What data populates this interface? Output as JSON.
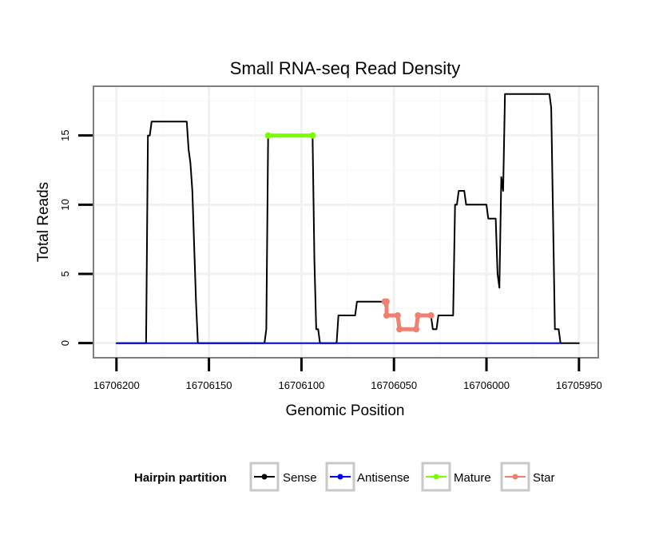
{
  "chart_data": {
    "type": "line",
    "title": "Small RNA-seq Read Density",
    "xlabel": "Genomic Position",
    "ylabel": "Total Reads",
    "x_reversed": true,
    "xlim": [
      16706212,
      16705940
    ],
    "ylim": [
      -1,
      18.5
    ],
    "x_ticks": [
      16706200,
      16706150,
      16706100,
      16706050,
      16706000,
      16705950
    ],
    "x_tick_labels": [
      "16706200",
      "16706150",
      "16706100",
      "16706050",
      "16706000",
      "16705950"
    ],
    "y_ticks": [
      0,
      5,
      10,
      15
    ],
    "y_tick_labels": [
      "0",
      "5",
      "10",
      "15"
    ],
    "grid": true,
    "legend": {
      "title": "Hairpin partition",
      "position": "bottom",
      "entries": [
        {
          "label": "Sense",
          "color": "#000000"
        },
        {
          "label": "Antisense",
          "color": "#0000ff"
        },
        {
          "label": "Mature",
          "color": "#7cfc00"
        },
        {
          "label": "Star",
          "color": "#f08070"
        }
      ]
    },
    "series": [
      {
        "name": "Sense",
        "color": "#000000",
        "points": [
          [
            16706200,
            0
          ],
          [
            16706184,
            0
          ],
          [
            16706183,
            15
          ],
          [
            16706182,
            15
          ],
          [
            16706181,
            16
          ],
          [
            16706162,
            16
          ],
          [
            16706161,
            14
          ],
          [
            16706160,
            13
          ],
          [
            16706159,
            11
          ],
          [
            16706157,
            3
          ],
          [
            16706156,
            0
          ],
          [
            16706120,
            0
          ],
          [
            16706119,
            1
          ],
          [
            16706118,
            15
          ],
          [
            16706094,
            15
          ],
          [
            16706093,
            6
          ],
          [
            16706092,
            1
          ],
          [
            16706091,
            1
          ],
          [
            16706090,
            0
          ],
          [
            16706081,
            0
          ],
          [
            16706080,
            2
          ],
          [
            16706071,
            2
          ],
          [
            16706070,
            3
          ],
          [
            16706055,
            3
          ],
          [
            16706054,
            2
          ],
          [
            16706048,
            2
          ],
          [
            16706047,
            1
          ],
          [
            16706038,
            1
          ],
          [
            16706037,
            2
          ],
          [
            16706030,
            2
          ],
          [
            16706029,
            1
          ],
          [
            16706027,
            1
          ],
          [
            16706026,
            2
          ],
          [
            16706018,
            2
          ],
          [
            16706017,
            10
          ],
          [
            16706016,
            10
          ],
          [
            16706015,
            11
          ],
          [
            16706012,
            11
          ],
          [
            16706011,
            10
          ],
          [
            16706000,
            10
          ],
          [
            16705999,
            9
          ],
          [
            16705995,
            9
          ],
          [
            16705994,
            5
          ],
          [
            16705993,
            4
          ],
          [
            16705992,
            12
          ],
          [
            16705991,
            11
          ],
          [
            16705990,
            18
          ],
          [
            16705966,
            18
          ],
          [
            16705965,
            17
          ],
          [
            16705963,
            1
          ],
          [
            16705961,
            1
          ],
          [
            16705960,
            0
          ],
          [
            16705950,
            0
          ]
        ]
      },
      {
        "name": "Antisense",
        "color": "#0000ff",
        "points": [
          [
            16706200,
            0
          ],
          [
            16705960,
            0
          ]
        ]
      },
      {
        "name": "Mature",
        "color": "#7cfc00",
        "points": [
          [
            16706118,
            15
          ],
          [
            16706094,
            15
          ]
        ]
      },
      {
        "name": "Star",
        "color": "#f08070",
        "points": [
          [
            16706055,
            3
          ],
          [
            16706054,
            3
          ],
          [
            16706054,
            2
          ],
          [
            16706048,
            2
          ],
          [
            16706047,
            1
          ],
          [
            16706038,
            1
          ],
          [
            16706037,
            2
          ],
          [
            16706030,
            2
          ]
        ]
      }
    ]
  }
}
